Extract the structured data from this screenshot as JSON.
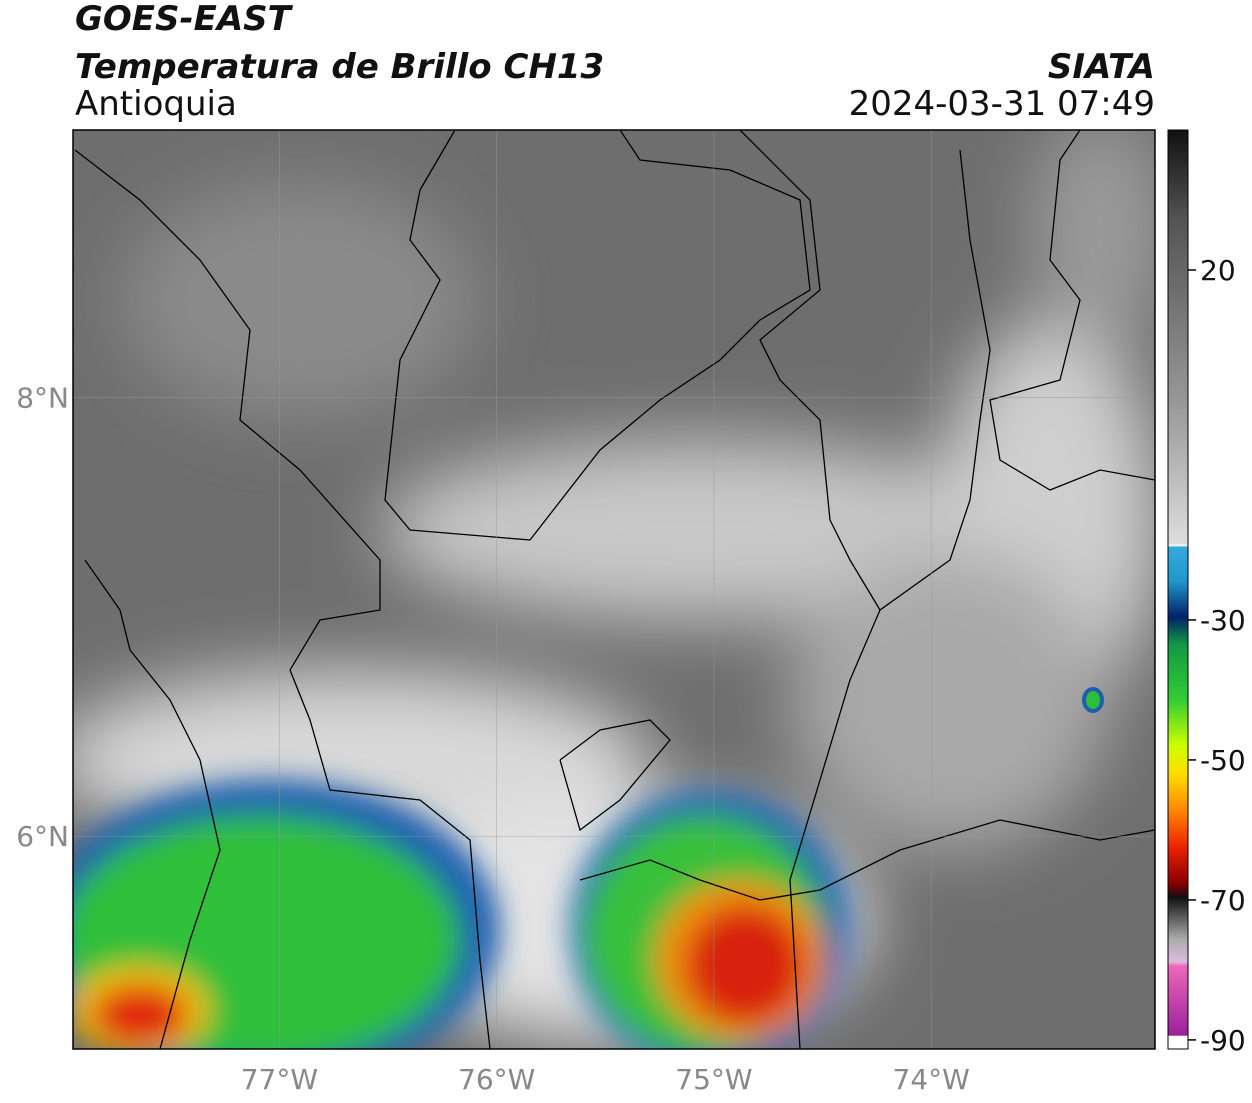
{
  "header": {
    "title": "GOES-EAST",
    "subtitle": "Temperatura de Brillo CH13",
    "region": "Antioquia",
    "source": "SIATA",
    "datetime": "2024-03-31 07:49"
  },
  "map": {
    "xlim": [
      -77.95,
      -72.97
    ],
    "ylim": [
      5.03,
      9.22
    ],
    "xticks": [
      {
        "value": -77,
        "label": "77°W"
      },
      {
        "value": -76,
        "label": "76°W"
      },
      {
        "value": -75,
        "label": "75°W"
      },
      {
        "value": -74,
        "label": "74°W"
      }
    ],
    "yticks": [
      {
        "value": 6,
        "label": "6°N"
      },
      {
        "value": 8,
        "label": "8°N"
      }
    ],
    "grid": true
  },
  "colorbar": {
    "lim": [
      -91.3,
      40
    ],
    "ticks": [
      20,
      -30,
      -50,
      -70,
      -90
    ]
  }
}
